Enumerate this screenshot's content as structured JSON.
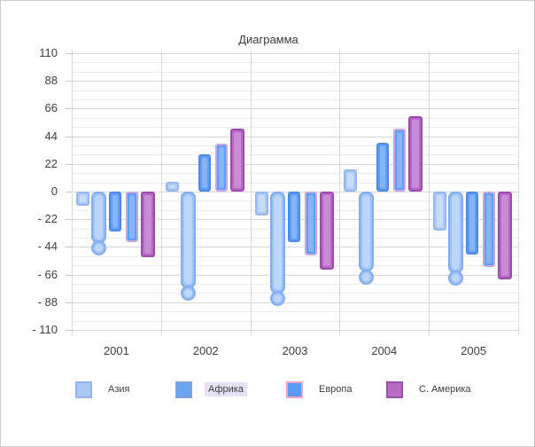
{
  "window": {
    "background": "#ffffff",
    "border_color": "#c9ccd1"
  },
  "chart_data": {
    "type": "bar",
    "title": "Диаграмма",
    "categories": [
      "2001",
      "2002",
      "2003",
      "2004",
      "2005"
    ],
    "series": [
      {
        "id": "asia",
        "legend_label": "Азия",
        "shape": "bar",
        "values": [
          -11,
          8,
          -19,
          18,
          -31
        ],
        "fill": "#aecbf5",
        "border": "#93b7ef",
        "inner": "#c7dcfb"
      },
      {
        "id": "lollipop",
        "legend_label": null,
        "shape": "lollipop",
        "values": [
          -45,
          -81,
          -85,
          -68,
          -69
        ],
        "fill": "#9dc2f8",
        "border": "#83adef",
        "inner": "#bcd5fb"
      },
      {
        "id": "africa",
        "legend_label": "Африка",
        "shape": "bar",
        "values": [
          -32,
          30,
          -40,
          39,
          -50
        ],
        "fill": "#609ef5",
        "border": "#4d89e2",
        "inner": "#86b4f8"
      },
      {
        "id": "europe",
        "legend_label": "Европа",
        "shape": "bar",
        "values": [
          -40,
          38,
          -51,
          50,
          -60
        ],
        "fill": "#609ef5",
        "border": "#c7a7df",
        "inner": "#86b4f8"
      },
      {
        "id": "n-america",
        "legend_label": "С. Америка",
        "shape": "bar",
        "values": [
          -52,
          50,
          -62,
          60,
          -70
        ],
        "fill": "#b568c5",
        "border": "#9b4caa",
        "inner": "#c98bd4"
      }
    ],
    "y_axis": {
      "min": -110,
      "max": 110,
      "major_unit": 22,
      "minor_divisions_per_major": 3,
      "ticks": [
        {
          "value": 110,
          "label": "110"
        },
        {
          "value": 88,
          "label": "88"
        },
        {
          "value": 66,
          "label": "66"
        },
        {
          "value": 44,
          "label": "44"
        },
        {
          "value": 22,
          "label": "22"
        },
        {
          "value": 0,
          "label": "0"
        },
        {
          "value": -22,
          "label": "- 22"
        },
        {
          "value": -44,
          "label": "- 44"
        },
        {
          "value": -66,
          "label": "- 66"
        },
        {
          "value": -88,
          "label": "- 88"
        },
        {
          "value": -110,
          "label": "- 110"
        }
      ]
    },
    "grid": {
      "major_color": "#d7d7d7",
      "minor_color": "#ebebeb",
      "vertical_color": "#d3d8e1",
      "visible": true
    },
    "legend": {
      "position": "bottom",
      "items": [
        {
          "id": "asia",
          "label": "Азия",
          "fill": "#a9c9f4",
          "border": "#8fb4ee",
          "highlighted": false
        },
        {
          "id": "africa",
          "label": "Африка",
          "fill": "#6ba5f1",
          "border": "#7fa3dc",
          "highlighted": true
        },
        {
          "id": "europe",
          "label": "Европа",
          "fill": "#5b9bf8",
          "border": "#efa3c2",
          "highlighted": false
        },
        {
          "id": "n-america",
          "label": "С. Америка",
          "fill": "#b86cc8",
          "border": "#9950a8",
          "highlighted": false
        }
      ]
    }
  }
}
